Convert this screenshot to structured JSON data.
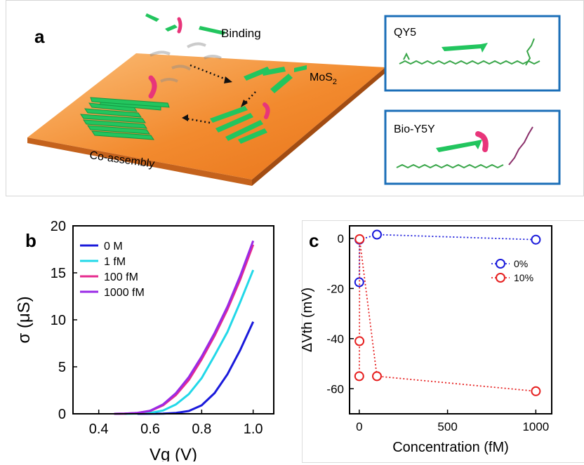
{
  "panel_a": {
    "label": "a",
    "binding_label": "Binding",
    "substrate_label": "MoS",
    "substrate_subscript": "2",
    "coassembly_label": "Co-assembly",
    "inset_top_label": "QY5",
    "inset_bottom_label": "Bio-Y5Y",
    "colors": {
      "substrate": "#f28a2e",
      "molecule": "#22c55e",
      "biotin": "#e8357a",
      "box_border": "#1c6fb8"
    }
  },
  "chart_data": [
    {
      "panel_label": "b",
      "type": "line",
      "xlabel": "Vg (V)",
      "ylabel": "σ (μS)",
      "xlim": [
        0.3,
        1.08
      ],
      "ylim": [
        0,
        20
      ],
      "xticks": [
        "0.4",
        "0.6",
        "0.8",
        "1.0"
      ],
      "yticks": [
        "0",
        "5",
        "10",
        "15",
        "20"
      ],
      "legend_position": "top-left",
      "series": [
        {
          "name": "0 M",
          "color": "#1a1adb",
          "x": [
            0.55,
            0.65,
            0.7,
            0.75,
            0.8,
            0.85,
            0.9,
            0.95,
            1.0
          ],
          "y": [
            0.0,
            0.02,
            0.1,
            0.3,
            0.9,
            2.2,
            4.2,
            6.8,
            9.8
          ]
        },
        {
          "name": "1 fM",
          "color": "#22d8e8",
          "x": [
            0.5,
            0.55,
            0.6,
            0.65,
            0.7,
            0.75,
            0.8,
            0.85,
            0.9,
            0.95,
            1.0
          ],
          "y": [
            0.0,
            0.03,
            0.1,
            0.35,
            1.0,
            2.1,
            3.8,
            6.2,
            8.7,
            11.9,
            15.3
          ]
        },
        {
          "name": "100 fM",
          "color": "#e62a8e",
          "x": [
            0.46,
            0.5,
            0.55,
            0.6,
            0.65,
            0.7,
            0.75,
            0.8,
            0.85,
            0.9,
            0.95,
            1.0
          ],
          "y": [
            0.0,
            0.02,
            0.1,
            0.3,
            0.9,
            2.0,
            3.6,
            5.8,
            8.3,
            11.1,
            14.3,
            18.0
          ]
        },
        {
          "name": "1000 fM",
          "color": "#9a2ae6",
          "x": [
            0.46,
            0.5,
            0.55,
            0.6,
            0.65,
            0.7,
            0.75,
            0.8,
            0.85,
            0.9,
            0.95,
            1.0
          ],
          "y": [
            0.0,
            0.02,
            0.1,
            0.33,
            1.0,
            2.2,
            3.9,
            6.1,
            8.6,
            11.4,
            14.7,
            18.4
          ]
        }
      ]
    },
    {
      "panel_label": "c",
      "type": "scatter",
      "xlabel": "Concentration (fM)",
      "ylabel": "ΔVth (mV)",
      "xlim": [
        -55,
        1090
      ],
      "ylim": [
        -70,
        5
      ],
      "xticks": [
        "0",
        "500",
        "1000"
      ],
      "yticks": [
        "0",
        "-20",
        "-40",
        "-60"
      ],
      "legend_position": "top-right",
      "series": [
        {
          "name": "0%",
          "color": "#1a1adb",
          "x": [
            0,
            1,
            100,
            1000
          ],
          "y": [
            -17.5,
            -0.5,
            1.5,
            -0.5
          ]
        },
        {
          "name": "10%",
          "color": "#e62020",
          "x": [
            0,
            1,
            2,
            100,
            1000
          ],
          "y": [
            -55,
            -41,
            -0.3,
            -55,
            -61
          ]
        }
      ]
    }
  ]
}
